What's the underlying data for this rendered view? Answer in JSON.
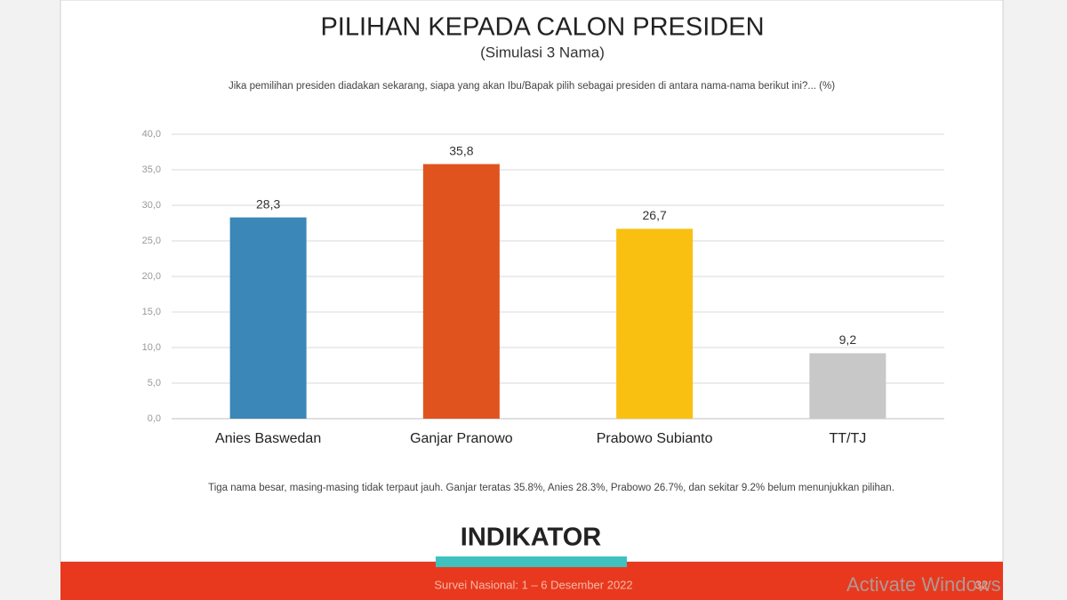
{
  "chart_data": {
    "type": "bar",
    "title": "PILIHAN KEPADA CALON PRESIDEN",
    "subtitle": "(Simulasi 3 Nama)",
    "question": "Jika pemilihan presiden diadakan sekarang, siapa yang akan Ibu/Bapak pilih sebagai presiden di antara nama-nama berikut ini?... (%)",
    "categories": [
      "Anies Baswedan",
      "Ganjar Pranowo",
      "Prabowo Subianto",
      "TT/TJ"
    ],
    "values": [
      28.3,
      35.8,
      26.7,
      9.2
    ],
    "value_labels": [
      "28,3",
      "35,8",
      "26,7",
      "9,2"
    ],
    "colors": [
      "#3a87b8",
      "#e0531f",
      "#f9c012",
      "#c8c8c8"
    ],
    "ylim": [
      0,
      40
    ],
    "yticks": [
      {
        "value": 0,
        "label": "0,0"
      },
      {
        "value": 5,
        "label": "5,0"
      },
      {
        "value": 10,
        "label": "10,0"
      },
      {
        "value": 15,
        "label": "15,0"
      },
      {
        "value": 20,
        "label": "20,0"
      },
      {
        "value": 25,
        "label": "25,0"
      },
      {
        "value": 30,
        "label": "30,0"
      },
      {
        "value": 35,
        "label": "35,0"
      },
      {
        "value": 40,
        "label": "40,0"
      }
    ],
    "grid": true,
    "note": "Tiga nama besar, masing-masing tidak terpaut jauh. Ganjar teratas 35.8%, Anies 28.3%, Prabowo 26.7%, dan sekitar 9.2% belum menunjukkan pilihan."
  },
  "logo": "INDIKATOR",
  "footer": "Survei Nasional: 1 – 6 Desember 2022",
  "page_number": "32",
  "watermark": "Activate Windows"
}
